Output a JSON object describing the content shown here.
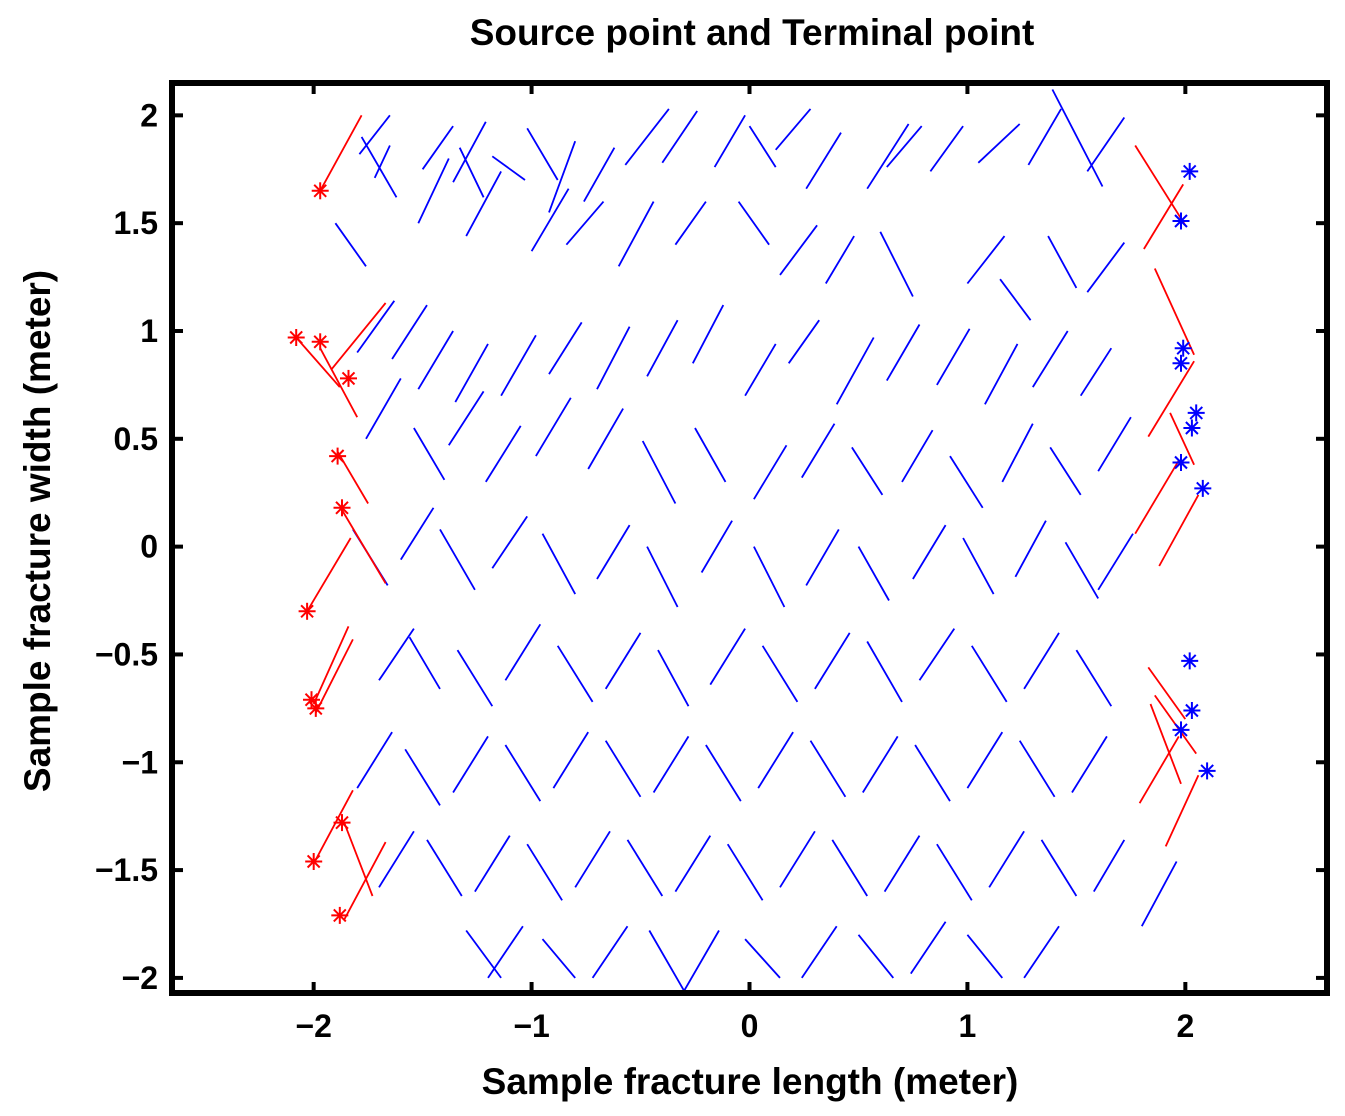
{
  "chart_data": {
    "type": "line",
    "title": "Source point and Terminal point",
    "xlabel": "Sample fracture length (meter)",
    "ylabel": "Sample fracture width (meter)",
    "xlim": [
      -2.65,
      2.65
    ],
    "ylim": [
      -2.07,
      2.15
    ],
    "xticks": [
      -2,
      -1,
      0,
      1,
      2
    ],
    "xtick_labels": [
      "−2",
      "−1",
      "0",
      "1",
      "2"
    ],
    "yticks": [
      2,
      1.5,
      1,
      0.5,
      0,
      -0.5,
      -1,
      -1.5,
      -2
    ],
    "ytick_labels": [
      "2",
      "1.5",
      "1",
      "0.5",
      "0",
      "−0.5",
      "−1",
      "−1.5",
      "−2"
    ],
    "grid": false,
    "legend": "none",
    "colors": {
      "fracture": "#0000ff",
      "source": "#ff0000",
      "terminal": "#0000ff",
      "axes": "#000000"
    },
    "series": [
      {
        "role": "source-fractures",
        "color": "#ff0000",
        "segments": [
          [
            -1.97,
            1.65,
            -1.78,
            2.0
          ],
          [
            -1.92,
            0.82,
            -1.67,
            1.13
          ],
          [
            -2.08,
            0.97,
            -1.88,
            0.74
          ],
          [
            -1.97,
            0.92,
            -1.8,
            0.6
          ],
          [
            -1.89,
            0.44,
            -1.75,
            0.2
          ],
          [
            -1.87,
            0.17,
            -1.67,
            -0.17
          ],
          [
            -2.03,
            -0.3,
            -1.83,
            0.04
          ],
          [
            -2.0,
            -0.73,
            -1.84,
            -0.37
          ],
          [
            -1.99,
            -0.77,
            -1.82,
            -0.43
          ],
          [
            -1.86,
            -1.28,
            -1.73,
            -1.62
          ],
          [
            -2.0,
            -1.47,
            -1.82,
            -1.13
          ],
          [
            -1.86,
            -1.73,
            -1.67,
            -1.37
          ],
          [
            1.77,
            1.86,
            2.0,
            1.49
          ],
          [
            1.81,
            1.38,
            1.99,
            1.68
          ],
          [
            1.86,
            1.29,
            2.04,
            0.89
          ],
          [
            1.83,
            0.51,
            2.04,
            0.86
          ],
          [
            1.93,
            0.62,
            2.04,
            0.38
          ],
          [
            1.77,
            0.06,
            1.97,
            0.4
          ],
          [
            1.88,
            -0.09,
            2.06,
            0.24
          ],
          [
            1.83,
            -0.56,
            2.0,
            -0.8
          ],
          [
            1.86,
            -0.69,
            2.05,
            -0.96
          ],
          [
            1.84,
            -0.73,
            1.98,
            -1.1
          ],
          [
            1.79,
            -1.19,
            1.97,
            -0.88
          ],
          [
            1.91,
            -1.39,
            2.06,
            -1.06
          ]
        ]
      },
      {
        "role": "fracture-network",
        "color": "#0000ff",
        "segments": [
          [
            -1.79,
            1.82,
            -1.65,
            2.0
          ],
          [
            -1.72,
            1.71,
            -1.65,
            1.86
          ],
          [
            -1.62,
            1.62,
            -1.78,
            1.9
          ],
          [
            -1.5,
            1.75,
            -1.36,
            1.95
          ],
          [
            -1.36,
            1.69,
            -1.21,
            1.97
          ],
          [
            -1.33,
            1.85,
            -1.22,
            1.62
          ],
          [
            -1.18,
            1.81,
            -1.03,
            1.7
          ],
          [
            -1.02,
            1.94,
            -0.88,
            1.7
          ],
          [
            -0.92,
            1.55,
            -0.8,
            1.88
          ],
          [
            -0.76,
            1.6,
            -0.62,
            1.85
          ],
          [
            -0.57,
            1.77,
            -0.37,
            2.03
          ],
          [
            -0.4,
            1.78,
            -0.24,
            2.02
          ],
          [
            -0.16,
            1.76,
            -0.02,
            2.0
          ],
          [
            0.0,
            1.95,
            0.12,
            1.76
          ],
          [
            0.12,
            1.84,
            0.28,
            2.03
          ],
          [
            0.26,
            1.66,
            0.42,
            1.92
          ],
          [
            0.54,
            1.66,
            0.73,
            1.96
          ],
          [
            0.63,
            1.76,
            0.79,
            1.95
          ],
          [
            0.83,
            1.74,
            0.98,
            1.95
          ],
          [
            1.05,
            1.78,
            1.24,
            1.96
          ],
          [
            1.28,
            1.77,
            1.43,
            2.03
          ],
          [
            1.39,
            2.12,
            1.62,
            1.67
          ],
          [
            1.55,
            1.74,
            1.72,
            1.99
          ],
          [
            -1.9,
            1.5,
            -1.76,
            1.3
          ],
          [
            -1.52,
            1.5,
            -1.38,
            1.8
          ],
          [
            -1.3,
            1.44,
            -1.14,
            1.74
          ],
          [
            -1.0,
            1.37,
            -0.83,
            1.66
          ],
          [
            -0.84,
            1.4,
            -0.67,
            1.6
          ],
          [
            -0.6,
            1.3,
            -0.44,
            1.6
          ],
          [
            -0.34,
            1.4,
            -0.2,
            1.6
          ],
          [
            -0.05,
            1.6,
            0.09,
            1.4
          ],
          [
            0.14,
            1.26,
            0.31,
            1.49
          ],
          [
            0.35,
            1.22,
            0.48,
            1.44
          ],
          [
            0.6,
            1.46,
            0.75,
            1.16
          ],
          [
            1.0,
            1.22,
            1.17,
            1.44
          ],
          [
            1.15,
            1.24,
            1.29,
            1.05
          ],
          [
            1.37,
            1.44,
            1.5,
            1.2
          ],
          [
            1.55,
            1.18,
            1.72,
            1.41
          ],
          [
            -1.8,
            0.9,
            -1.63,
            1.14
          ],
          [
            -1.64,
            0.87,
            -1.48,
            1.12
          ],
          [
            -1.52,
            0.73,
            -1.36,
            1.0
          ],
          [
            -1.35,
            0.67,
            -1.2,
            0.94
          ],
          [
            -1.14,
            0.7,
            -0.98,
            0.98
          ],
          [
            -0.92,
            0.8,
            -0.77,
            1.04
          ],
          [
            -0.7,
            0.73,
            -0.55,
            1.02
          ],
          [
            -0.47,
            0.79,
            -0.33,
            1.05
          ],
          [
            -0.26,
            0.85,
            -0.12,
            1.12
          ],
          [
            -0.02,
            0.7,
            0.12,
            0.94
          ],
          [
            0.18,
            0.85,
            0.32,
            1.05
          ],
          [
            0.4,
            0.66,
            0.57,
            0.97
          ],
          [
            0.63,
            0.77,
            0.78,
            1.03
          ],
          [
            0.86,
            0.75,
            1.01,
            1.01
          ],
          [
            1.08,
            0.66,
            1.23,
            0.94
          ],
          [
            1.3,
            0.74,
            1.46,
            1.0
          ],
          [
            1.52,
            0.7,
            1.66,
            0.92
          ],
          [
            -1.76,
            0.5,
            -1.6,
            0.78
          ],
          [
            -1.54,
            0.55,
            -1.4,
            0.31
          ],
          [
            -1.38,
            0.47,
            -1.22,
            0.72
          ],
          [
            -1.21,
            0.3,
            -1.05,
            0.56
          ],
          [
            -0.98,
            0.42,
            -0.82,
            0.69
          ],
          [
            -0.74,
            0.36,
            -0.58,
            0.64
          ],
          [
            -0.49,
            0.49,
            -0.34,
            0.2
          ],
          [
            -0.25,
            0.55,
            -0.11,
            0.3
          ],
          [
            0.02,
            0.22,
            0.17,
            0.47
          ],
          [
            0.24,
            0.32,
            0.39,
            0.57
          ],
          [
            0.47,
            0.46,
            0.61,
            0.24
          ],
          [
            0.7,
            0.3,
            0.84,
            0.54
          ],
          [
            0.92,
            0.42,
            1.07,
            0.18
          ],
          [
            1.16,
            0.3,
            1.3,
            0.57
          ],
          [
            1.38,
            0.46,
            1.52,
            0.24
          ],
          [
            1.6,
            0.35,
            1.75,
            0.6
          ],
          [
            -1.82,
            0.08,
            -1.66,
            -0.18
          ],
          [
            -1.6,
            -0.06,
            -1.45,
            0.18
          ],
          [
            -1.42,
            0.08,
            -1.26,
            -0.2
          ],
          [
            -1.18,
            -0.1,
            -1.02,
            0.14
          ],
          [
            -0.95,
            0.06,
            -0.8,
            -0.22
          ],
          [
            -0.7,
            -0.15,
            -0.55,
            0.1
          ],
          [
            -0.47,
            0.0,
            -0.33,
            -0.28
          ],
          [
            -0.22,
            -0.12,
            -0.08,
            0.12
          ],
          [
            0.02,
            0.0,
            0.16,
            -0.28
          ],
          [
            0.26,
            -0.18,
            0.41,
            0.08
          ],
          [
            0.5,
            0.0,
            0.64,
            -0.25
          ],
          [
            0.75,
            -0.15,
            0.9,
            0.1
          ],
          [
            0.98,
            0.04,
            1.12,
            -0.22
          ],
          [
            1.22,
            -0.14,
            1.36,
            0.12
          ],
          [
            1.45,
            0.02,
            1.6,
            -0.24
          ],
          [
            1.6,
            -0.2,
            1.76,
            0.06
          ],
          [
            -1.7,
            -0.62,
            -1.54,
            -0.38
          ],
          [
            -1.56,
            -0.42,
            -1.42,
            -0.66
          ],
          [
            -1.34,
            -0.48,
            -1.18,
            -0.74
          ],
          [
            -1.12,
            -0.62,
            -0.96,
            -0.36
          ],
          [
            -0.88,
            -0.46,
            -0.72,
            -0.72
          ],
          [
            -0.66,
            -0.66,
            -0.5,
            -0.4
          ],
          [
            -0.42,
            -0.48,
            -0.28,
            -0.74
          ],
          [
            -0.18,
            -0.64,
            -0.02,
            -0.38
          ],
          [
            0.06,
            -0.46,
            0.22,
            -0.72
          ],
          [
            0.3,
            -0.66,
            0.46,
            -0.4
          ],
          [
            0.54,
            -0.44,
            0.7,
            -0.72
          ],
          [
            0.78,
            -0.62,
            0.94,
            -0.38
          ],
          [
            1.02,
            -0.46,
            1.18,
            -0.72
          ],
          [
            1.26,
            -0.66,
            1.42,
            -0.4
          ],
          [
            1.5,
            -0.48,
            1.66,
            -0.74
          ],
          [
            -1.8,
            -1.12,
            -1.64,
            -0.86
          ],
          [
            -1.58,
            -0.94,
            -1.42,
            -1.2
          ],
          [
            -1.36,
            -1.14,
            -1.2,
            -0.88
          ],
          [
            -1.12,
            -0.92,
            -0.96,
            -1.18
          ],
          [
            -0.9,
            -1.12,
            -0.74,
            -0.86
          ],
          [
            -0.66,
            -0.9,
            -0.5,
            -1.16
          ],
          [
            -0.44,
            -1.14,
            -0.28,
            -0.88
          ],
          [
            -0.2,
            -0.92,
            -0.04,
            -1.18
          ],
          [
            0.04,
            -1.12,
            0.2,
            -0.86
          ],
          [
            0.28,
            -0.9,
            0.44,
            -1.16
          ],
          [
            0.52,
            -1.14,
            0.68,
            -0.88
          ],
          [
            0.76,
            -0.92,
            0.92,
            -1.18
          ],
          [
            1.0,
            -1.12,
            1.16,
            -0.86
          ],
          [
            1.24,
            -0.9,
            1.4,
            -1.16
          ],
          [
            1.48,
            -1.14,
            1.64,
            -0.88
          ],
          [
            -1.7,
            -1.58,
            -1.54,
            -1.32
          ],
          [
            -1.48,
            -1.36,
            -1.32,
            -1.62
          ],
          [
            -1.26,
            -1.6,
            -1.1,
            -1.34
          ],
          [
            -1.02,
            -1.38,
            -0.86,
            -1.64
          ],
          [
            -0.8,
            -1.58,
            -0.64,
            -1.32
          ],
          [
            -0.56,
            -1.36,
            -0.4,
            -1.62
          ],
          [
            -0.34,
            -1.6,
            -0.18,
            -1.34
          ],
          [
            -0.1,
            -1.38,
            0.06,
            -1.64
          ],
          [
            0.14,
            -1.58,
            0.3,
            -1.32
          ],
          [
            0.38,
            -1.36,
            0.54,
            -1.62
          ],
          [
            0.62,
            -1.6,
            0.78,
            -1.34
          ],
          [
            0.86,
            -1.38,
            1.02,
            -1.64
          ],
          [
            1.1,
            -1.58,
            1.26,
            -1.32
          ],
          [
            1.34,
            -1.36,
            1.5,
            -1.62
          ],
          [
            1.58,
            -1.6,
            1.72,
            -1.36
          ],
          [
            -1.3,
            -1.78,
            -1.14,
            -2.0
          ],
          [
            -1.2,
            -2.0,
            -1.04,
            -1.76
          ],
          [
            -0.95,
            -1.82,
            -0.8,
            -2.0
          ],
          [
            -0.72,
            -2.0,
            -0.56,
            -1.76
          ],
          [
            -0.46,
            -1.78,
            -0.3,
            -2.06
          ],
          [
            -0.3,
            -2.06,
            -0.14,
            -1.78
          ],
          [
            -0.02,
            -1.82,
            0.14,
            -2.0
          ],
          [
            0.24,
            -2.0,
            0.4,
            -1.76
          ],
          [
            0.5,
            -1.8,
            0.66,
            -2.0
          ],
          [
            0.74,
            -1.98,
            0.9,
            -1.74
          ],
          [
            1.0,
            -1.8,
            1.16,
            -2.0
          ],
          [
            1.26,
            -2.0,
            1.42,
            -1.76
          ],
          [
            1.8,
            -1.76,
            1.96,
            -1.46
          ]
        ]
      }
    ],
    "source_points": {
      "color": "#ff0000",
      "x": [
        -1.97,
        -2.08,
        -1.97,
        -1.84,
        -1.89,
        -1.87,
        -2.03,
        -2.01,
        -1.99,
        -1.87,
        -2.0,
        -1.88
      ],
      "y": [
        1.65,
        0.97,
        0.95,
        0.78,
        0.42,
        0.18,
        -0.3,
        -0.71,
        -0.75,
        -1.28,
        -1.46,
        -1.71
      ]
    },
    "terminal_points": {
      "color": "#0000ff",
      "x": [
        2.02,
        1.98,
        1.99,
        1.98,
        2.05,
        2.03,
        1.98,
        2.08,
        2.02,
        2.03,
        1.98,
        2.1
      ],
      "y": [
        1.74,
        1.51,
        0.92,
        0.85,
        0.62,
        0.55,
        0.39,
        0.27,
        -0.53,
        -0.76,
        -0.85,
        -1.04
      ]
    }
  }
}
